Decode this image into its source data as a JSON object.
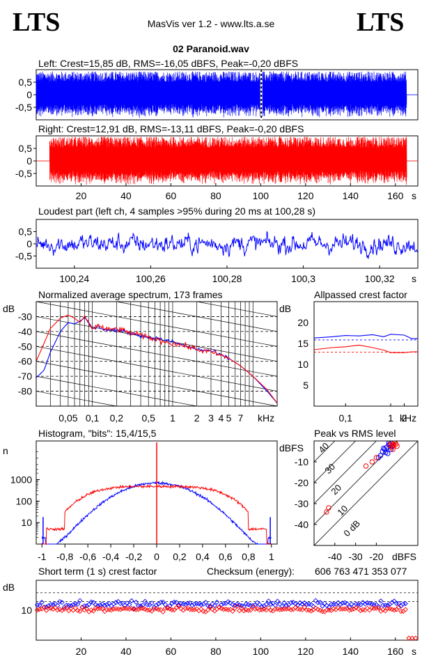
{
  "header": {
    "logo_left": "LTS",
    "logo_right": "LTS",
    "app_title": "MasVis ver 1.2 - www.lts.a.se",
    "file_name": "02 Paranoid.wav"
  },
  "colors": {
    "left": "#0000ff",
    "right": "#ff0000",
    "axis": "#000000"
  },
  "chart_data": [
    {
      "id": "left_waveform",
      "type": "line",
      "title": "Left: Crest=15,85 dB, RMS=-16,05 dBFS, Peak=-0,20 dBFS",
      "x_range": [
        0,
        170
      ],
      "ylim": [
        -1,
        1
      ],
      "yticks": [
        "0,5",
        "0",
        "-0,5"
      ],
      "ytick_values": [
        0.5,
        0,
        -0.5
      ],
      "signal_start_s": 0,
      "signal_end_s": 165,
      "loudest_marker_s": 100.28
    },
    {
      "id": "right_waveform",
      "type": "line",
      "title": "Right: Crest=12,91 dB, RMS=-13,11 dBFS, Peak=-0,20 dBFS",
      "x_range": [
        0,
        170
      ],
      "ylim": [
        -1,
        1
      ],
      "yticks": [
        "0,5",
        "0",
        "-0,5"
      ],
      "ytick_values": [
        0.5,
        0,
        -0.5
      ],
      "signal_start_s": 6,
      "signal_end_s": 165,
      "xticks": [
        "20",
        "40",
        "60",
        "80",
        "100",
        "120",
        "140",
        "160"
      ],
      "xtick_values": [
        20,
        40,
        60,
        80,
        100,
        120,
        140,
        160
      ],
      "xunit": "s"
    },
    {
      "id": "loudest_part",
      "type": "line",
      "title": "Loudest part (left  ch, 4 samples >95% during 20 ms at 100,28 s)",
      "x_range": [
        100.23,
        100.33
      ],
      "ylim": [
        -1,
        1
      ],
      "yticks": [
        "0,5",
        "0",
        "-0,5"
      ],
      "ytick_values": [
        0.5,
        0,
        -0.5
      ],
      "xticks": [
        "100,24",
        "100,26",
        "100,28",
        "100,3",
        "100,32"
      ],
      "xtick_values": [
        100.24,
        100.26,
        100.28,
        100.3,
        100.32
      ],
      "xunit": "s"
    },
    {
      "id": "avg_spectrum",
      "type": "line",
      "title": "Normalized average spectrum, 173 frames",
      "ylabel": "dB",
      "xunit": "kHz",
      "log_x": true,
      "x_range_khz": [
        0.02,
        20
      ],
      "ylim": [
        -90,
        -20
      ],
      "yticks": [
        "-30",
        "-40",
        "-50",
        "-60",
        "-70",
        "-80"
      ],
      "ytick_values": [
        -30,
        -40,
        -50,
        -60,
        -70,
        -80
      ],
      "xticks": [
        "0,05",
        "0,1",
        "0,2",
        "0,5",
        "1",
        "2",
        "3",
        "4",
        "5",
        "7"
      ],
      "xtick_values": [
        0.05,
        0.1,
        0.2,
        0.5,
        1,
        2,
        3,
        4,
        5,
        7
      ],
      "series": [
        {
          "x": [
            0.02,
            0.025,
            0.03,
            0.04,
            0.05,
            0.06,
            0.07,
            0.08,
            0.1,
            0.12,
            0.15,
            0.2,
            0.3,
            0.5,
            0.7,
            1,
            1.5,
            2,
            3,
            4,
            5,
            7,
            10,
            15,
            20
          ],
          "y": [
            -71,
            -66,
            -54,
            -40,
            -34,
            -35,
            -33,
            -31,
            -38,
            -37,
            -39,
            -39,
            -41,
            -44,
            -45,
            -47,
            -50,
            -52,
            -53,
            -56,
            -58,
            -63,
            -70,
            -80,
            -88
          ]
        },
        {
          "x": [
            0.02,
            0.025,
            0.03,
            0.04,
            0.05,
            0.06,
            0.07,
            0.08,
            0.1,
            0.12,
            0.15,
            0.2,
            0.3,
            0.5,
            0.7,
            1,
            1.5,
            2,
            3,
            4,
            5,
            7,
            10,
            15,
            20
          ],
          "y": [
            -60,
            -48,
            -38,
            -31,
            -29,
            -31,
            -34,
            -30,
            -38,
            -36,
            -39,
            -38,
            -41,
            -44,
            -46,
            -48,
            -50,
            -52,
            -54,
            -56,
            -58,
            -63,
            -70,
            -79,
            -88
          ]
        }
      ]
    },
    {
      "id": "allpassed_crest",
      "type": "line",
      "title": "Allpassed crest factor",
      "ylabel": "dB",
      "xunit": "kHz",
      "log_x": true,
      "x_range_khz": [
        0.02,
        4
      ],
      "ylim": [
        0,
        25
      ],
      "yticks": [
        "20",
        "15",
        "10",
        "5"
      ],
      "ytick_values": [
        20,
        15,
        10,
        5
      ],
      "xticks": [
        "0,1",
        "1",
        "2"
      ],
      "xtick_values": [
        0.1,
        1,
        2
      ],
      "reference_dB": [
        15.85,
        12.91
      ],
      "series": [
        {
          "x": [
            0.02,
            0.05,
            0.1,
            0.2,
            0.4,
            0.7,
            1,
            2,
            3,
            4
          ],
          "y": [
            16.3,
            16.6,
            16.9,
            16.8,
            17.1,
            16.6,
            17.2,
            17.0,
            16.1,
            16.2
          ]
        },
        {
          "x": [
            0.02,
            0.05,
            0.1,
            0.2,
            0.4,
            0.7,
            1,
            2,
            3,
            4
          ],
          "y": [
            13.5,
            14.0,
            14.2,
            14.6,
            14.0,
            13.4,
            12.8,
            12.8,
            13.0,
            13.0
          ]
        }
      ]
    },
    {
      "id": "histogram",
      "type": "line",
      "title": "Histogram, \"bits\": 15,4/15,5",
      "ylabel": "n",
      "log_y": true,
      "x_range": [
        -1.05,
        1.05
      ],
      "yticks": [
        "1000",
        "100",
        "10"
      ],
      "ytick_values": [
        1000,
        100,
        10
      ],
      "xticks": [
        "-1",
        "-0,8",
        "-0,6",
        "-0,4",
        "-0,2",
        "0",
        "0,2",
        "0,4",
        "0,6",
        "0,8",
        "1"
      ],
      "xtick_values": [
        -1,
        -0.8,
        -0.6,
        -0.4,
        -0.2,
        0,
        0.2,
        0.4,
        0.6,
        0.8,
        1
      ]
    },
    {
      "id": "peak_vs_rms",
      "type": "scatter",
      "title": "Peak vs RMS level",
      "ylabel": "dBFS",
      "xlabel": "dBFS",
      "x_range": [
        -50,
        0
      ],
      "ylim": [
        -50,
        0
      ],
      "yticks": [
        "-10",
        "-20",
        "-30",
        "-40"
      ],
      "ytick_values": [
        -10,
        -20,
        -30,
        -40
      ],
      "xticks": [
        "-40",
        "-30",
        "-20"
      ],
      "xtick_values": [
        -40,
        -30,
        -20
      ],
      "diagonal_labels": [
        "40",
        "30",
        "20",
        "10",
        "0 dB"
      ],
      "diagonal_values": [
        40,
        30,
        20,
        10,
        0
      ],
      "series": [
        {
          "x": [
            -17,
            -16,
            -15,
            -14,
            -13.5,
            -13,
            -12.5,
            -14.5,
            -15.5,
            -18,
            -19,
            -16.5,
            -14,
            -13
          ],
          "y": [
            -5,
            -4,
            -3,
            -2,
            -1.5,
            -1,
            -2.5,
            -6,
            -5.5,
            -7,
            -8,
            -3.5,
            -1,
            -4
          ]
        },
        {
          "x": [
            -13,
            -12,
            -11,
            -10.5,
            -12.5,
            -11.5,
            -10,
            -13.5,
            -22,
            -25,
            -43,
            -44,
            -20,
            -12
          ],
          "y": [
            -1,
            -1.5,
            -0.5,
            -1.5,
            -3,
            -2,
            -2.5,
            -2,
            -10,
            -12,
            -32,
            -34,
            -8,
            -4
          ]
        }
      ]
    },
    {
      "id": "short_term_crest",
      "type": "scatter",
      "title": "Short term (1 s) crest factor",
      "ylabel": "dB",
      "x_range": [
        0,
        170
      ],
      "ylim": [
        0,
        20
      ],
      "yticks": [
        "10"
      ],
      "ytick_values": [
        10
      ],
      "xticks": [
        "20",
        "40",
        "60",
        "80",
        "100",
        "120",
        "140",
        "160"
      ],
      "xtick_values": [
        20,
        40,
        60,
        80,
        100,
        120,
        140,
        160
      ],
      "xunit": "s",
      "reference_dB": [
        15.85,
        12.91
      ],
      "series": [
        {
          "mean": 12.0,
          "spread": 1.2
        },
        {
          "mean": 10.3,
          "spread": 0.9
        }
      ]
    }
  ],
  "checksum": {
    "label": "Checksum (energy):",
    "value": "606 763 471 353 077"
  }
}
